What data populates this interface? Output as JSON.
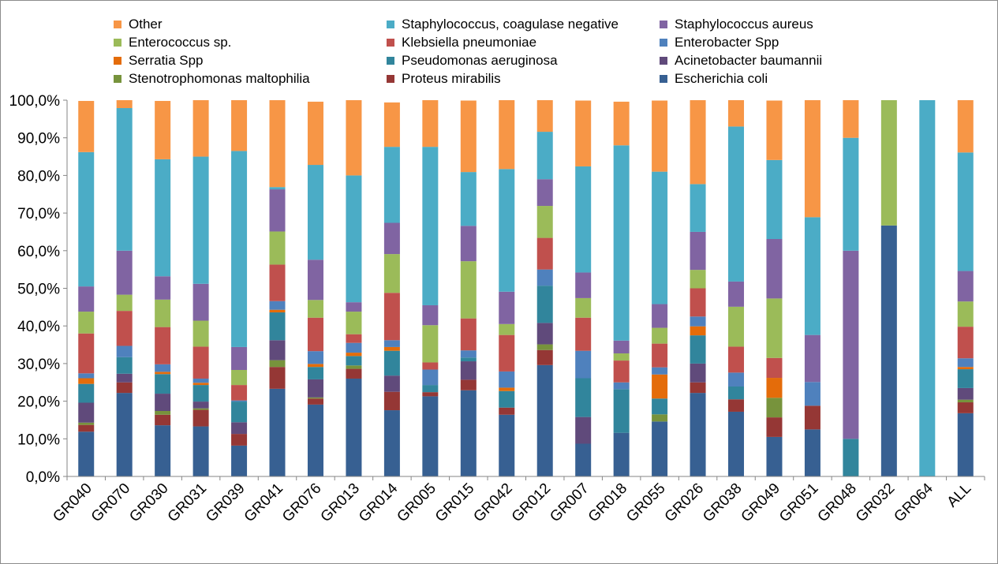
{
  "chart_data": {
    "type": "bar",
    "stacked": true,
    "percent": true,
    "title": "",
    "xlabel": "",
    "ylabel": "",
    "ylim": [
      0,
      100
    ],
    "yticks": [
      "0,0%",
      "10,0%",
      "20,0%",
      "30,0%",
      "40,0%",
      "50,0%",
      "60,0%",
      "70,0%",
      "80,0%",
      "90,0%",
      "100,0%"
    ],
    "grid": false,
    "legend_position": "top",
    "legend": [
      {
        "name": "Other",
        "color": "#f79646"
      },
      {
        "name": "Staphylococcus, coagulase negative",
        "color": "#4bacc6"
      },
      {
        "name": "Staphylococcus aureus",
        "color": "#8064a2"
      },
      {
        "name": "Enterococcus sp.",
        "color": "#9bbb59"
      },
      {
        "name": "Klebsiella pneumoniae",
        "color": "#c0504d"
      },
      {
        "name": "Enterobacter Spp",
        "color": "#4f81bd"
      },
      {
        "name": "Serratia Spp",
        "color": "#e46c0a"
      },
      {
        "name": "Pseudomonas aeruginosa",
        "color": "#31859c"
      },
      {
        "name": "Acinetobacter baumannii",
        "color": "#604a7b"
      },
      {
        "name": "Stenotrophomonas maltophilia",
        "color": "#77933c"
      },
      {
        "name": "Proteus mirabilis",
        "color": "#953735"
      },
      {
        "name": "Escherichia coli",
        "color": "#376092"
      }
    ],
    "categories": [
      "GR040",
      "GR070",
      "GR030",
      "GR031",
      "GR039",
      "GR041",
      "GR076",
      "GR013",
      "GR014",
      "GR005",
      "GR015",
      "GR042",
      "GR012",
      "GR007",
      "GR018",
      "GR055",
      "GR026",
      "GR038",
      "GR049",
      "GR051",
      "GR048",
      "GR032",
      "GR064",
      "ALL"
    ],
    "series": [
      {
        "name": "Escherichia coli",
        "color": "#376092",
        "values": [
          11.9,
          22.2,
          13.6,
          13.3,
          8.2,
          23.3,
          19.1,
          26.0,
          17.6,
          21.3,
          22.9,
          16.4,
          29.6,
          8.7,
          11.6,
          14.6,
          22.2,
          17.2,
          10.5,
          12.5,
          0,
          66.7,
          0,
          16.8
        ]
      },
      {
        "name": "Proteus mirabilis",
        "color": "#953735",
        "values": [
          1.8,
          2.8,
          2.8,
          4.4,
          3.1,
          5.8,
          1.6,
          2.6,
          4.9,
          1.1,
          2.8,
          1.9,
          4.0,
          0,
          0,
          0,
          2.8,
          3.3,
          5.2,
          6.3,
          0,
          0,
          0,
          2.9
        ]
      },
      {
        "name": "Stenotrophomonas maltophilia",
        "color": "#77933c",
        "values": [
          0.6,
          0,
          1.0,
          0.4,
          0,
          1.8,
          0.3,
          0.9,
          0,
          0,
          0,
          0,
          1.5,
          0,
          0,
          1.9,
          0,
          0,
          5.2,
          0,
          0,
          0,
          0,
          0.7
        ]
      },
      {
        "name": "Acinetobacter baumannii",
        "color": "#604a7b",
        "values": [
          5.3,
          2.3,
          4.6,
          1.8,
          3.1,
          5.3,
          4.8,
          0,
          4.3,
          0,
          4.9,
          0,
          5.7,
          7.1,
          0,
          0,
          5.0,
          0,
          0,
          0,
          0,
          0,
          0,
          3.1
        ]
      },
      {
        "name": "Pseudomonas aeruginosa",
        "color": "#31859c",
        "values": [
          5.0,
          4.4,
          5.2,
          4.4,
          5.5,
          7.4,
          3.3,
          2.5,
          6.6,
          1.9,
          1.0,
          4.4,
          9.9,
          10.3,
          11.6,
          4.2,
          7.5,
          3.4,
          0,
          0,
          10.0,
          0,
          0,
          5.0
        ]
      },
      {
        "name": "Serratia Spp",
        "color": "#e46c0a",
        "values": [
          1.5,
          0,
          0.6,
          0.6,
          0,
          0.7,
          0.8,
          0.9,
          1.0,
          0,
          0,
          0.9,
          0,
          0,
          0,
          6.4,
          2.4,
          0,
          5.3,
          0,
          0,
          0,
          0,
          0.6
        ]
      },
      {
        "name": "Enterobacter Spp",
        "color": "#4f81bd",
        "values": [
          1.3,
          3.0,
          2.0,
          1.1,
          0.3,
          2.3,
          3.4,
          2.6,
          1.8,
          4.1,
          1.9,
          4.3,
          4.3,
          7.3,
          1.8,
          1.9,
          2.6,
          3.7,
          0,
          6.3,
          0,
          0,
          0,
          2.3
        ]
      },
      {
        "name": "Klebsiella pneumoniae",
        "color": "#c0504d",
        "values": [
          10.6,
          9.3,
          9.9,
          8.5,
          4.1,
          9.7,
          8.9,
          2.3,
          12.6,
          1.9,
          8.5,
          9.7,
          8.4,
          8.8,
          5.8,
          6.3,
          7.5,
          6.9,
          5.3,
          0,
          0,
          0,
          0,
          8.4
        ]
      },
      {
        "name": "Enterococcus sp.",
        "color": "#9bbb59",
        "values": [
          5.8,
          4.3,
          7.3,
          6.9,
          4.0,
          8.8,
          4.7,
          6.0,
          10.3,
          9.9,
          15.2,
          2.9,
          8.5,
          5.2,
          1.9,
          4.2,
          4.9,
          10.6,
          15.8,
          0,
          0,
          33.3,
          0,
          6.7
        ]
      },
      {
        "name": "Staphylococcus aureus",
        "color": "#8064a2",
        "values": [
          6.7,
          11.7,
          6.2,
          9.8,
          6.1,
          11.2,
          10.7,
          2.5,
          8.3,
          5.3,
          9.4,
          8.6,
          7.1,
          6.8,
          3.4,
          6.3,
          10.1,
          6.7,
          15.8,
          12.5,
          50.0,
          0,
          0,
          8.1
        ]
      },
      {
        "name": "Staphylococcus, coagulase negative",
        "color": "#4bacc6",
        "values": [
          35.7,
          37.9,
          31.1,
          33.8,
          52.1,
          0.6,
          25.2,
          33.7,
          20.2,
          42.1,
          14.3,
          32.6,
          12.6,
          28.2,
          51.9,
          35.2,
          12.7,
          41.2,
          21.0,
          31.3,
          30.0,
          0,
          100.0,
          31.5
        ]
      },
      {
        "name": "Other",
        "color": "#f79646",
        "values": [
          13.6,
          2.1,
          15.5,
          15.0,
          13.7,
          23.1,
          16.8,
          20.1,
          11.8,
          12.5,
          19.0,
          18.3,
          8.4,
          17.5,
          11.6,
          18.9,
          22.4,
          7.0,
          15.8,
          31.3,
          10.0,
          0,
          0,
          13.9
        ]
      }
    ]
  }
}
